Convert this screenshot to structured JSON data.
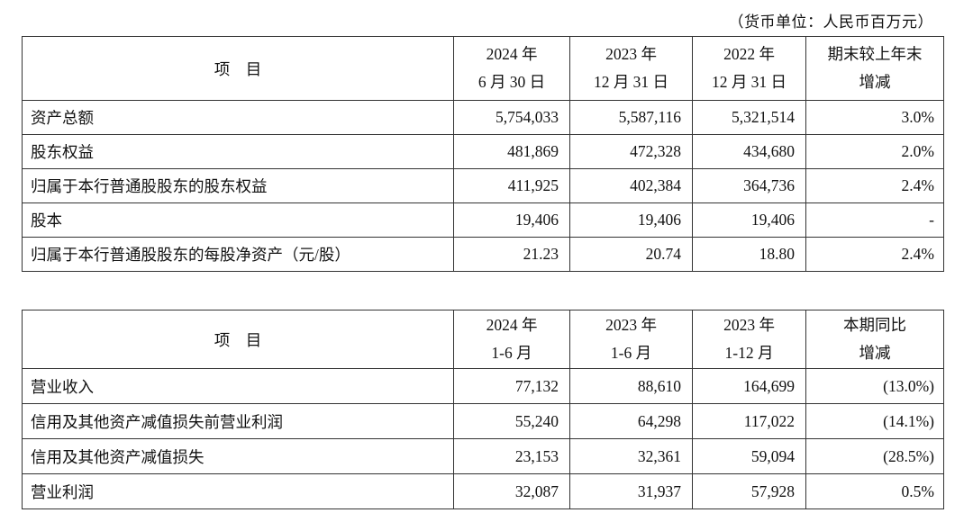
{
  "unit_note": "（货币单位：人民币百万元）",
  "table1": {
    "item_header": "项　目",
    "columns": [
      {
        "line1": "2024 年",
        "line2": "6 月 30 日"
      },
      {
        "line1": "2023 年",
        "line2": "12 月 31 日"
      },
      {
        "line1": "2022 年",
        "line2": "12 月 31 日"
      },
      {
        "line1": "期末较上年末",
        "line2": "增减"
      }
    ],
    "rows": [
      {
        "label": "资产总额",
        "v1": "5,754,033",
        "v2": "5,587,116",
        "v3": "5,321,514",
        "change": "3.0%"
      },
      {
        "label": "股东权益",
        "v1": "481,869",
        "v2": "472,328",
        "v3": "434,680",
        "change": "2.0%"
      },
      {
        "label": "归属于本行普通股股东的股东权益",
        "v1": "411,925",
        "v2": "402,384",
        "v3": "364,736",
        "change": "2.4%"
      },
      {
        "label": "股本",
        "v1": "19,406",
        "v2": "19,406",
        "v3": "19,406",
        "change": "-"
      },
      {
        "label": "归属于本行普通股股东的每股净资产（元/股）",
        "v1": "21.23",
        "v2": "20.74",
        "v3": "18.80",
        "change": "2.4%"
      }
    ]
  },
  "table2": {
    "item_header": "项　目",
    "columns": [
      {
        "line1": "2024 年",
        "line2": "1-6 月"
      },
      {
        "line1": "2023 年",
        "line2": "1-6 月"
      },
      {
        "line1": "2023 年",
        "line2": "1-12 月"
      },
      {
        "line1": "本期同比",
        "line2": "增减"
      }
    ],
    "rows": [
      {
        "label": "营业收入",
        "v1": "77,132",
        "v2": "88,610",
        "v3": "164,699",
        "change": "(13.0%)"
      },
      {
        "label": "信用及其他资产减值损失前营业利润",
        "v1": "55,240",
        "v2": "64,298",
        "v3": "117,022",
        "change": "(14.1%)"
      },
      {
        "label": "信用及其他资产减值损失",
        "v1": "23,153",
        "v2": "32,361",
        "v3": "59,094",
        "change": "(28.5%)"
      },
      {
        "label": "营业利润",
        "v1": "32,087",
        "v2": "31,937",
        "v3": "57,928",
        "change": "0.5%"
      }
    ]
  }
}
